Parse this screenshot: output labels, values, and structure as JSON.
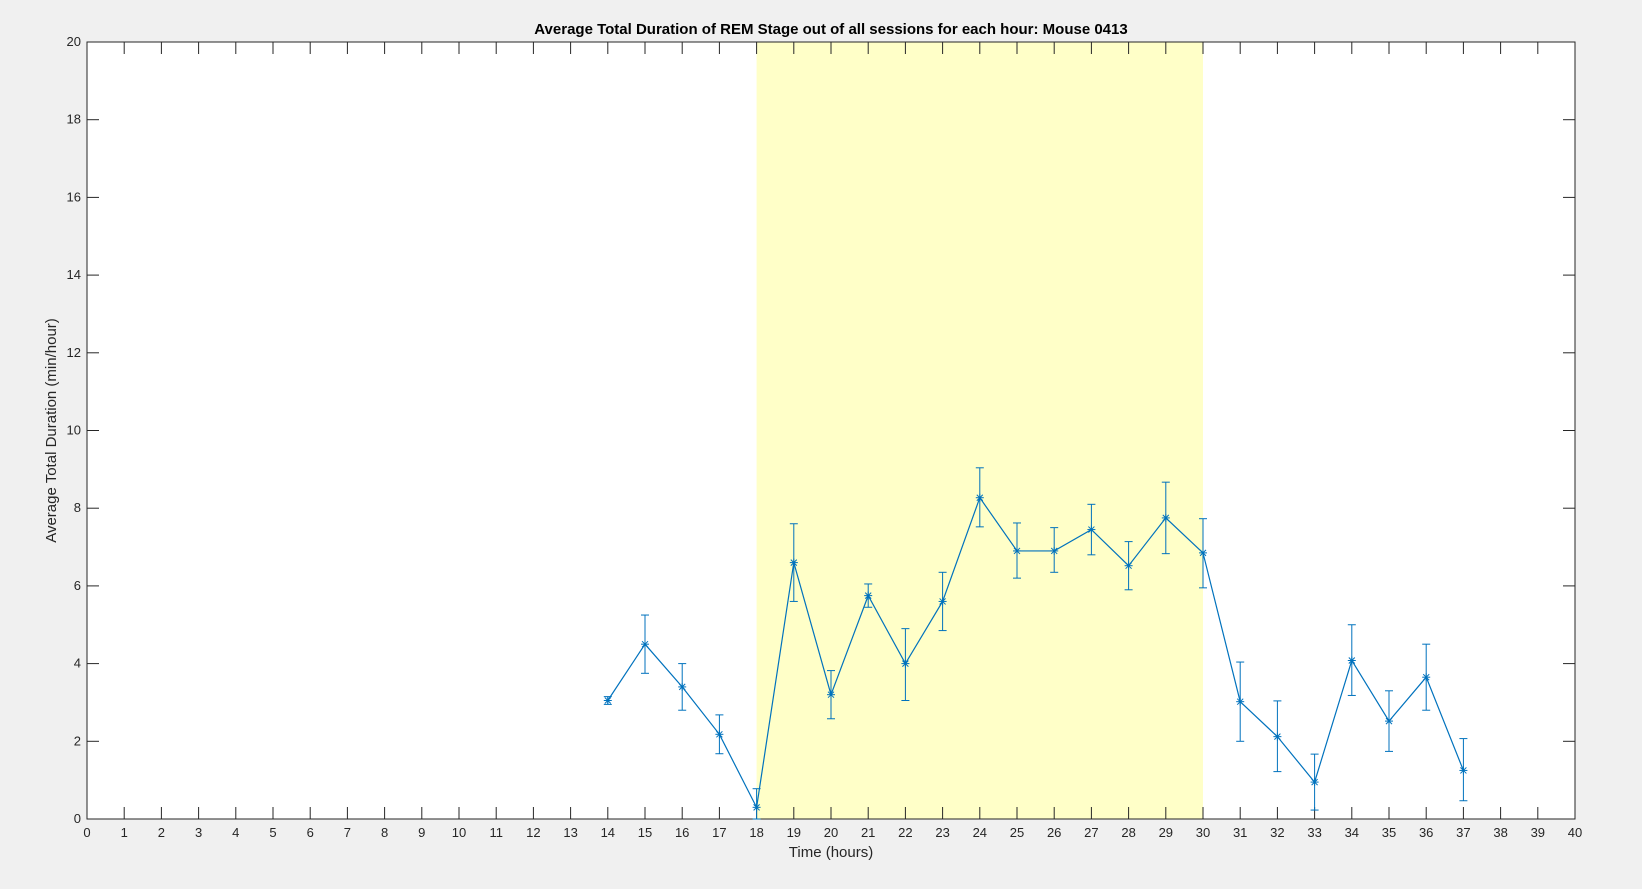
{
  "chart_data": {
    "type": "line",
    "title": "Average Total Duration of REM Stage out of all sessions for each hour: Mouse 0413",
    "xlabel": "Time (hours)",
    "ylabel": "Average Total Duration (min/hour)",
    "xlim": [
      0,
      40
    ],
    "ylim": [
      0,
      20
    ],
    "xticks": [
      0,
      1,
      2,
      3,
      4,
      5,
      6,
      7,
      8,
      9,
      10,
      11,
      12,
      13,
      14,
      15,
      16,
      17,
      18,
      19,
      20,
      21,
      22,
      23,
      24,
      25,
      26,
      27,
      28,
      29,
      30,
      31,
      32,
      33,
      34,
      35,
      36,
      37,
      38,
      39,
      40
    ],
    "yticks": [
      0,
      2,
      4,
      6,
      8,
      10,
      12,
      14,
      16,
      18,
      20
    ],
    "shaded_region": {
      "x_start": 18,
      "x_end": 30,
      "color": "#ffffc8"
    },
    "grid": false,
    "series": [
      {
        "color": "#0072bd",
        "marker": "asterisk",
        "x": [
          14,
          15,
          16,
          17,
          18,
          19,
          20,
          21,
          22,
          23,
          24,
          25,
          26,
          27,
          28,
          29,
          30,
          31,
          32,
          33,
          34,
          35,
          36,
          37
        ],
        "y": [
          3.05,
          4.5,
          3.4,
          2.18,
          0.3,
          6.6,
          3.2,
          5.75,
          4.0,
          5.6,
          8.27,
          6.9,
          6.9,
          7.45,
          6.52,
          7.75,
          6.85,
          3.02,
          2.12,
          0.95,
          4.08,
          2.52,
          3.65,
          1.25
        ],
        "err_low": [
          0.1,
          0.75,
          0.6,
          0.5,
          0.3,
          1.0,
          0.62,
          0.3,
          0.95,
          0.75,
          0.75,
          0.7,
          0.55,
          0.65,
          0.62,
          0.92,
          0.9,
          1.02,
          0.9,
          0.72,
          0.9,
          0.78,
          0.85,
          0.78
        ],
        "err_high": [
          0.1,
          0.75,
          0.6,
          0.5,
          0.48,
          1.0,
          0.62,
          0.3,
          0.9,
          0.75,
          0.77,
          0.72,
          0.6,
          0.65,
          0.62,
          0.92,
          0.88,
          1.02,
          0.92,
          0.72,
          0.92,
          0.78,
          0.85,
          0.82
        ]
      }
    ]
  }
}
